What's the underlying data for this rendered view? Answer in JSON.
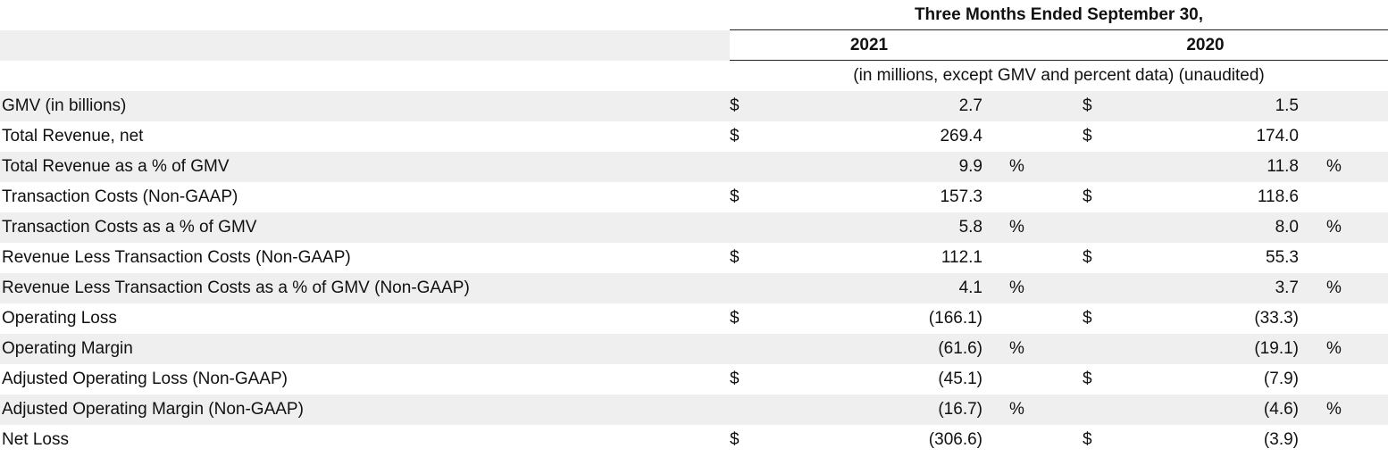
{
  "header": {
    "period": "Three Months Ended September 30,",
    "year_1": "2021",
    "year_2": "2020",
    "units_note": "(in millions, except GMV and percent data) (unaudited)"
  },
  "rows": [
    {
      "label": "GMV (in billions)",
      "d1": "$",
      "v1": "2.7",
      "p1": "",
      "d2": "$",
      "v2": "1.5",
      "p2": ""
    },
    {
      "label": "Total Revenue, net",
      "d1": "$",
      "v1": "269.4",
      "p1": "",
      "d2": "$",
      "v2": "174.0",
      "p2": ""
    },
    {
      "label": "Total Revenue as a % of GMV",
      "d1": "",
      "v1": "9.9",
      "p1": "%",
      "d2": "",
      "v2": "11.8",
      "p2": "%"
    },
    {
      "label": "Transaction Costs (Non-GAAP)",
      "d1": "$",
      "v1": "157.3",
      "p1": "",
      "d2": "$",
      "v2": "118.6",
      "p2": ""
    },
    {
      "label": "Transaction Costs as a % of GMV",
      "d1": "",
      "v1": "5.8",
      "p1": "%",
      "d2": "",
      "v2": "8.0",
      "p2": "%"
    },
    {
      "label": "Revenue Less Transaction Costs (Non-GAAP)",
      "d1": "$",
      "v1": "112.1",
      "p1": "",
      "d2": "$",
      "v2": "55.3",
      "p2": ""
    },
    {
      "label": "Revenue Less Transaction Costs as a % of GMV (Non-GAAP)",
      "d1": "",
      "v1": "4.1",
      "p1": "%",
      "d2": "",
      "v2": "3.7",
      "p2": "%"
    },
    {
      "label": "Operating Loss",
      "d1": "$",
      "v1": "(166.1)",
      "p1": "",
      "d2": "$",
      "v2": "(33.3)",
      "p2": ""
    },
    {
      "label": "Operating Margin",
      "d1": "",
      "v1": "(61.6)",
      "p1": "%",
      "d2": "",
      "v2": "(19.1)",
      "p2": "%"
    },
    {
      "label": "Adjusted Operating Loss (Non-GAAP)",
      "d1": "$",
      "v1": "(45.1)",
      "p1": "",
      "d2": "$",
      "v2": "(7.9)",
      "p2": ""
    },
    {
      "label": "Adjusted Operating Margin (Non-GAAP)",
      "d1": "",
      "v1": "(16.7)",
      "p1": "%",
      "d2": "",
      "v2": "(4.6)",
      "p2": "%"
    },
    {
      "label": "Net Loss",
      "d1": "$",
      "v1": "(306.6)",
      "p1": "",
      "d2": "$",
      "v2": "(3.9)",
      "p2": ""
    }
  ]
}
